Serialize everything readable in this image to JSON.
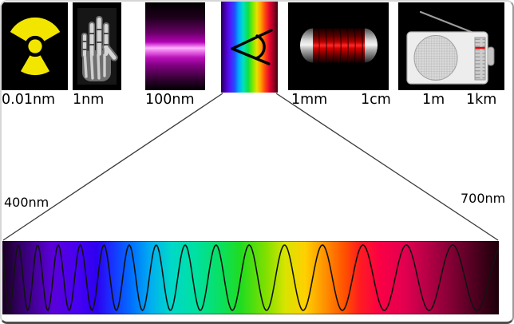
{
  "diagram": {
    "title": "electromagnetic-spectrum-wavelength-diagram",
    "wavelength_labels": [
      "0.01nm",
      "1nm",
      "100nm",
      "1mm",
      "1cm",
      "1m",
      "1km"
    ],
    "visible_range": {
      "min": "400nm",
      "max": "700nm"
    },
    "bands": [
      {
        "id": "gamma-ray",
        "label": "0.01nm",
        "icon": "radiation-trefoil-icon"
      },
      {
        "id": "x-ray",
        "label": "1nm",
        "icon": "xray-hand-icon"
      },
      {
        "id": "ultraviolet",
        "label": "100nm",
        "icon": "uv-glow-icon"
      },
      {
        "id": "visible-light",
        "icon": "eye-icon"
      },
      {
        "id": "microwave",
        "labels": [
          "1mm",
          "1cm"
        ],
        "icon": "microwave-tube-icon"
      },
      {
        "id": "radio",
        "labels": [
          "1m",
          "1km"
        ],
        "icon": "radio-receiver-icon"
      }
    ],
    "colors": {
      "panel_background": "#000000",
      "radiation_symbol": "#f2e600",
      "microwave_body": "#cc0000",
      "spectrum_violet_end": "#5a00d8",
      "spectrum_red_end": "#c40045"
    }
  }
}
